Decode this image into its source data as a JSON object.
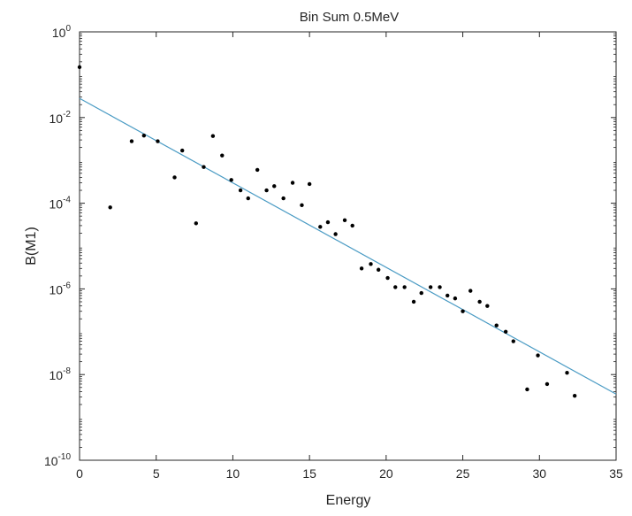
{
  "chart_data": {
    "type": "scatter",
    "title": "Bin Sum 0.5MeV",
    "xlabel": "Energy",
    "ylabel": "B(M1)",
    "xlim": [
      0,
      35
    ],
    "ylim": [
      1e-10,
      1
    ],
    "yscale": "log",
    "grid": false,
    "xticks": [
      0,
      5,
      10,
      15,
      20,
      25,
      30,
      35
    ],
    "yticks": [
      {
        "base": "10",
        "exp": "-10",
        "value": 1e-10
      },
      {
        "base": "10",
        "exp": "-8",
        "value": 1e-08
      },
      {
        "base": "10",
        "exp": "-6",
        "value": 1e-06
      },
      {
        "base": "10",
        "exp": "-4",
        "value": 0.0001
      },
      {
        "base": "10",
        "exp": "-2",
        "value": 0.01
      },
      {
        "base": "10",
        "exp": "0",
        "value": 1
      }
    ],
    "colors": {
      "points": "#000000",
      "fit_line": "#4a9bc4",
      "axes": "#262626"
    },
    "points": [
      {
        "x": 0.0,
        "y": 0.15
      },
      {
        "x": 2.0,
        "y": 8e-05
      },
      {
        "x": 3.4,
        "y": 0.0028
      },
      {
        "x": 4.2,
        "y": 0.0038
      },
      {
        "x": 5.1,
        "y": 0.0028
      },
      {
        "x": 6.2,
        "y": 0.0004
      },
      {
        "x": 6.7,
        "y": 0.0017
      },
      {
        "x": 7.6,
        "y": 3.4e-05
      },
      {
        "x": 8.1,
        "y": 0.0007
      },
      {
        "x": 8.7,
        "y": 0.0037
      },
      {
        "x": 9.3,
        "y": 0.0013
      },
      {
        "x": 9.9,
        "y": 0.00035
      },
      {
        "x": 10.5,
        "y": 0.0002
      },
      {
        "x": 11.0,
        "y": 0.00013
      },
      {
        "x": 11.6,
        "y": 0.0006
      },
      {
        "x": 12.2,
        "y": 0.0002
      },
      {
        "x": 12.7,
        "y": 0.00025
      },
      {
        "x": 13.3,
        "y": 0.00013
      },
      {
        "x": 13.9,
        "y": 0.0003
      },
      {
        "x": 14.5,
        "y": 9e-05
      },
      {
        "x": 15.0,
        "y": 0.00028
      },
      {
        "x": 15.7,
        "y": 2.8e-05
      },
      {
        "x": 16.2,
        "y": 3.6e-05
      },
      {
        "x": 16.7,
        "y": 1.9e-05
      },
      {
        "x": 17.3,
        "y": 4e-05
      },
      {
        "x": 17.8,
        "y": 3e-05
      },
      {
        "x": 18.4,
        "y": 3e-06
      },
      {
        "x": 19.0,
        "y": 3.8e-06
      },
      {
        "x": 19.5,
        "y": 2.8e-06
      },
      {
        "x": 20.1,
        "y": 1.8e-06
      },
      {
        "x": 20.6,
        "y": 1.1e-06
      },
      {
        "x": 21.2,
        "y": 1.1e-06
      },
      {
        "x": 21.8,
        "y": 5e-07
      },
      {
        "x": 22.3,
        "y": 8e-07
      },
      {
        "x": 22.9,
        "y": 1.1e-06
      },
      {
        "x": 23.5,
        "y": 1.1e-06
      },
      {
        "x": 24.0,
        "y": 7e-07
      },
      {
        "x": 24.5,
        "y": 6e-07
      },
      {
        "x": 25.0,
        "y": 3e-07
      },
      {
        "x": 25.5,
        "y": 9e-07
      },
      {
        "x": 26.1,
        "y": 5e-07
      },
      {
        "x": 26.6,
        "y": 4e-07
      },
      {
        "x": 27.2,
        "y": 1.4e-07
      },
      {
        "x": 27.8,
        "y": 1e-07
      },
      {
        "x": 28.3,
        "y": 6e-08
      },
      {
        "x": 29.2,
        "y": 4.5e-09
      },
      {
        "x": 29.9,
        "y": 2.8e-08
      },
      {
        "x": 30.5,
        "y": 6e-09
      },
      {
        "x": 31.8,
        "y": 1.1e-08
      },
      {
        "x": 32.3,
        "y": 3.2e-09
      }
    ],
    "fit_line": {
      "x": [
        0,
        35
      ],
      "y": [
        0.028,
        3.5e-09
      ]
    }
  }
}
